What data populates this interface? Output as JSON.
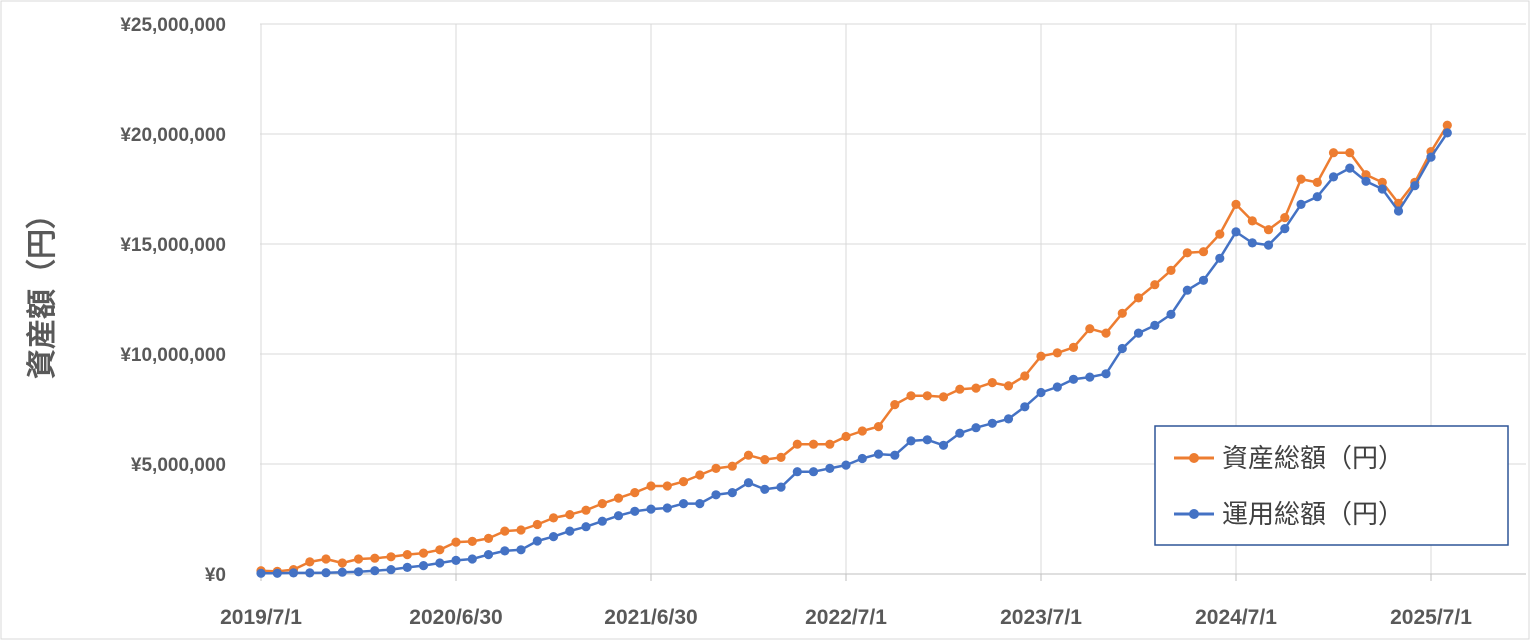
{
  "chart_data": {
    "type": "line",
    "ylabel": "資産額（円）",
    "xlabel": "",
    "ylim": [
      0,
      25000000
    ],
    "y_ticks": [
      0,
      5000000,
      10000000,
      15000000,
      20000000,
      25000000
    ],
    "y_tick_labels": [
      "¥0",
      "¥5,000,000",
      "¥10,000,000",
      "¥15,000,000",
      "¥20,000,000",
      "¥25,000,000"
    ],
    "x_tick_labels": [
      "2019/7/1",
      "2020/6/30",
      "2021/6/30",
      "2022/7/1",
      "2023/7/1",
      "2024/7/1",
      "2025/7/1"
    ],
    "x_tick_months": [
      0,
      12,
      24,
      36,
      48,
      60,
      72
    ],
    "x_start": "2019/7/1",
    "x_end_month": 73,
    "grid": true,
    "legend_position": "bottom-right",
    "series": [
      {
        "name": "資産総額（円）",
        "color": "#ED7D31",
        "values": [
          150000,
          120000,
          200000,
          550000,
          680000,
          500000,
          680000,
          720000,
          780000,
          880000,
          950000,
          1100000,
          1450000,
          1480000,
          1620000,
          1950000,
          2000000,
          2250000,
          2550000,
          2700000,
          2900000,
          3200000,
          3450000,
          3700000,
          4000000,
          4000000,
          4200000,
          4500000,
          4800000,
          4900000,
          5400000,
          5200000,
          5300000,
          5900000,
          5900000,
          5900000,
          6250000,
          6500000,
          6700000,
          7700000,
          8100000,
          8100000,
          8050000,
          8400000,
          8450000,
          8700000,
          8550000,
          9000000,
          9900000,
          10050000,
          10300000,
          11150000,
          10950000,
          11850000,
          12550000,
          13150000,
          13800000,
          14600000,
          14650000,
          15450000,
          16800000,
          16050000,
          15650000,
          16200000,
          17950000,
          17800000,
          19150000,
          19150000,
          18150000,
          17800000,
          16850000,
          17800000,
          19200000,
          20400000
        ]
      },
      {
        "name": "運用総額（円）",
        "color": "#4472C4",
        "values": [
          30000,
          30000,
          50000,
          50000,
          60000,
          80000,
          100000,
          150000,
          200000,
          300000,
          380000,
          500000,
          620000,
          680000,
          880000,
          1050000,
          1100000,
          1500000,
          1700000,
          1950000,
          2150000,
          2400000,
          2650000,
          2850000,
          2950000,
          3000000,
          3200000,
          3200000,
          3600000,
          3700000,
          4150000,
          3850000,
          3950000,
          4650000,
          4650000,
          4800000,
          4950000,
          5250000,
          5450000,
          5400000,
          6050000,
          6100000,
          5850000,
          6400000,
          6650000,
          6850000,
          7050000,
          7600000,
          8250000,
          8500000,
          8850000,
          8950000,
          9100000,
          10250000,
          10950000,
          11300000,
          11800000,
          12900000,
          13350000,
          14350000,
          15550000,
          15050000,
          14950000,
          15700000,
          16800000,
          17150000,
          18050000,
          18450000,
          17850000,
          17500000,
          16500000,
          17650000,
          18950000,
          20050000
        ]
      }
    ]
  }
}
